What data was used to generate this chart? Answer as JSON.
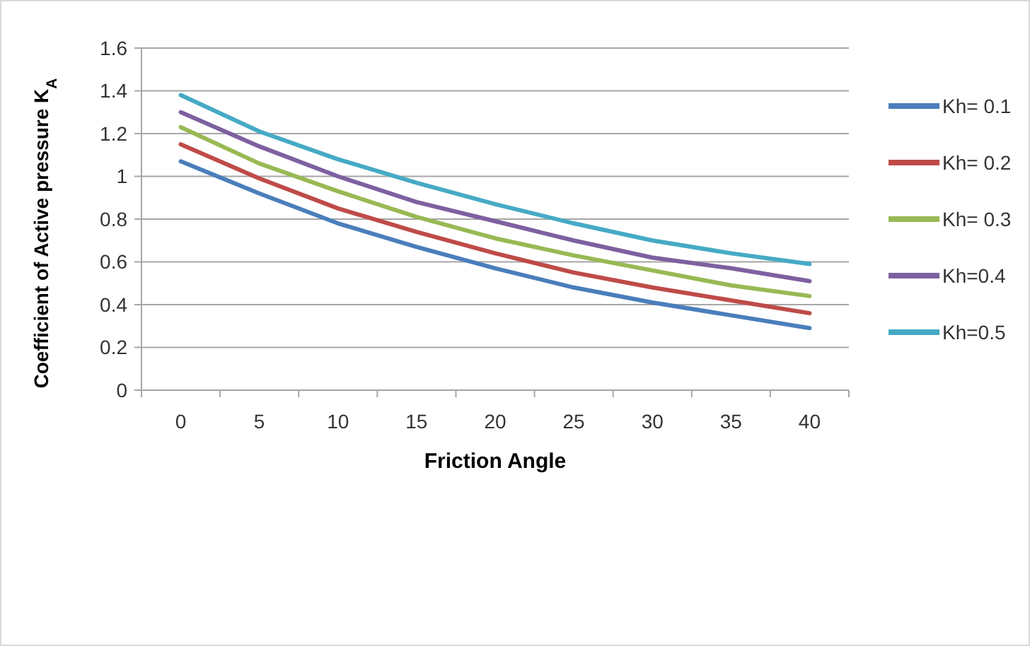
{
  "chart_data": {
    "type": "line",
    "xlabel": "Friction Angle",
    "ylabel": "Coefficient of Active pressure K$_{A}$",
    "categories": [
      "0",
      "5",
      "10",
      "15",
      "20",
      "25",
      "30",
      "35",
      "40"
    ],
    "ylim": [
      0,
      1.6
    ],
    "yticks": [
      0,
      0.2,
      0.4,
      0.6,
      0.8,
      1,
      1.2,
      1.4,
      1.6
    ],
    "grid": "y",
    "legend": "right",
    "marker": "none",
    "line_style": "solid",
    "series": [
      {
        "name": "Kh= 0.1",
        "color": "#4a7ebb",
        "values": [
          1.07,
          0.92,
          0.78,
          0.67,
          0.57,
          0.48,
          0.41,
          0.35,
          0.29
        ]
      },
      {
        "name": "Kh= 0.2",
        "color": "#be4b48",
        "values": [
          1.15,
          0.99,
          0.85,
          0.74,
          0.64,
          0.55,
          0.48,
          0.42,
          0.36
        ]
      },
      {
        "name": "Kh= 0.3",
        "color": "#98b954",
        "values": [
          1.23,
          1.06,
          0.93,
          0.81,
          0.71,
          0.63,
          0.56,
          0.49,
          0.44
        ]
      },
      {
        "name": "Kh=0.4",
        "color": "#7d60a0",
        "values": [
          1.3,
          1.14,
          1.0,
          0.88,
          0.79,
          0.7,
          0.62,
          0.57,
          0.51
        ]
      },
      {
        "name": "Kh=0.5",
        "color": "#46aac5",
        "values": [
          1.38,
          1.21,
          1.08,
          0.97,
          0.87,
          0.78,
          0.7,
          0.64,
          0.59
        ]
      }
    ]
  }
}
